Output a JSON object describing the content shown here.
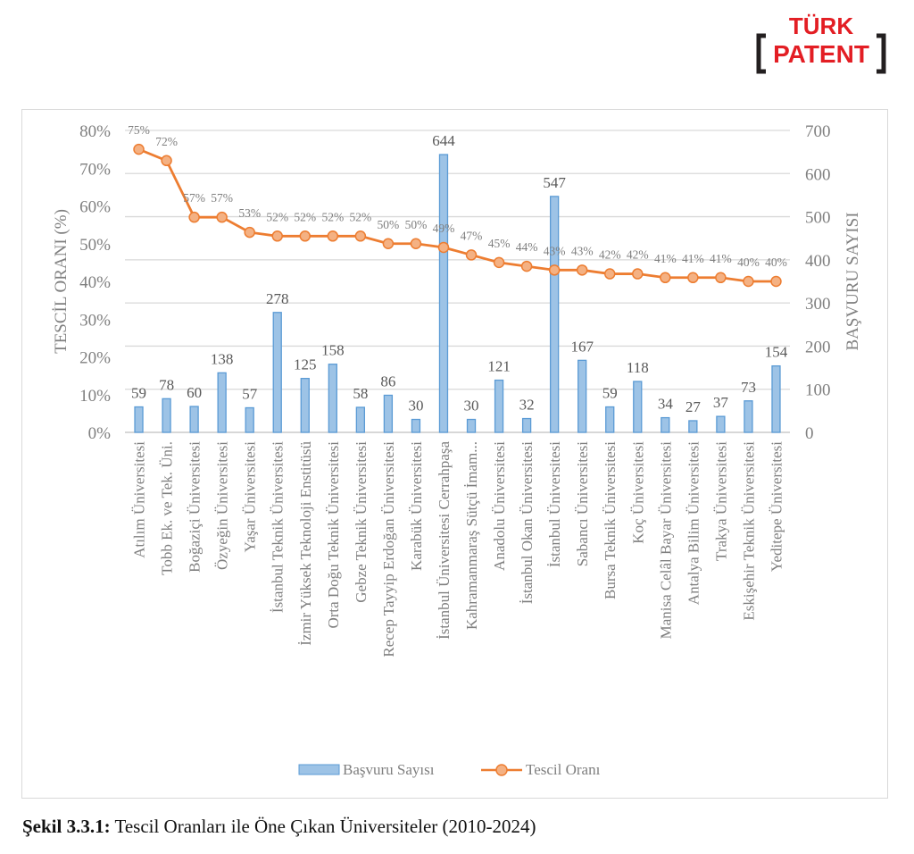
{
  "logo": {
    "line1": "TÜRK",
    "line2": "PATENT",
    "color": "#e31e24",
    "bracket_color": "#231f20"
  },
  "caption": {
    "label": "Şekil 3.3.1:",
    "text": " Tescil Oranları ile Öne Çıkan Üniversiteler (2010-2024)"
  },
  "chart_data": {
    "type": "bar",
    "title": "",
    "categories": [
      "Atılım Üniversitesi",
      "Tobb Ek. ve Tek. Üni.",
      "Boğaziçi Üniversitesi",
      "Özyeğin Üniversitesi",
      "Yaşar Üniversitesi",
      "İstanbul Teknik Üniversitesi",
      "İzmir Yüksek Teknoloji Enstitüsü",
      "Orta Doğu Teknik Üniversitesi",
      "Gebze Teknik Üniversitesi",
      "Recep Tayyip Erdoğan Üniversitesi",
      "Karabük Üniversitesi",
      "İstanbul Üniversitesi Cerrahpaşa",
      "Kahramanmaraş Sütçü İmam...",
      "Anadolu Üniversitesi",
      "İstanbul Okan Üniversitesi",
      "İstanbul Üniversitesi",
      "Sabancı Üniversitesi",
      "Bursa Teknik Üniversitesi",
      "Koç Üniversitesi",
      "Manisa Celâl Bayar Üniversitesi",
      "Antalya Bilim Üniversitesi",
      "Trakya Üniversitesi",
      "Eskişehir Teknik Üniversitesi",
      "Yeditepe Üniversitesi"
    ],
    "series": [
      {
        "name": "Başvuru Sayısı",
        "type": "bar",
        "axis": "right",
        "color": "#9dc3e6",
        "edge_color": "#5b9bd5",
        "values": [
          59,
          78,
          60,
          138,
          57,
          278,
          125,
          158,
          58,
          86,
          30,
          644,
          30,
          121,
          32,
          547,
          167,
          59,
          118,
          34,
          27,
          37,
          73,
          154
        ],
        "labels": [
          "59",
          "78",
          "60",
          "138",
          "57",
          "278",
          "125",
          "158",
          "58",
          "86",
          "30",
          "644",
          "30",
          "121",
          "32",
          "547",
          "167",
          "59",
          "118",
          "34",
          "27",
          "37",
          "73",
          "154"
        ]
      },
      {
        "name": "Tescil Oranı",
        "type": "line",
        "axis": "left",
        "color": "#ed7d31",
        "marker_fill": "#f4b183",
        "values": [
          0.75,
          0.72,
          0.57,
          0.57,
          0.53,
          0.52,
          0.52,
          0.52,
          0.52,
          0.5,
          0.5,
          0.49,
          0.47,
          0.45,
          0.44,
          0.43,
          0.43,
          0.42,
          0.42,
          0.41,
          0.41,
          0.41,
          0.4,
          0.4
        ],
        "labels": [
          "75%",
          "72%",
          "57%",
          "57%",
          "53%",
          "52%",
          "52%",
          "52%",
          "52%",
          "50%",
          "50%",
          "49%",
          "47%",
          "45%",
          "44%",
          "43%",
          "43%",
          "42%",
          "42%",
          "41%",
          "41%",
          "41%",
          "40%",
          "40%"
        ]
      }
    ],
    "y_left": {
      "label": "TESCİL ORANI (%)",
      "ylim": [
        0,
        0.8
      ],
      "ticks": [
        "0%",
        "10%",
        "20%",
        "30%",
        "40%",
        "50%",
        "60%",
        "70%",
        "80%"
      ]
    },
    "y_right": {
      "label": "BAŞVURU SAYISI",
      "ylim": [
        0,
        700
      ],
      "ticks": [
        "0",
        "100",
        "200",
        "300",
        "400",
        "500",
        "600",
        "700"
      ]
    },
    "xlabel": "",
    "grid": true,
    "legend": {
      "position": "bottom",
      "entries": [
        "Başvuru Sayısı",
        "Tescil Oranı"
      ]
    }
  }
}
